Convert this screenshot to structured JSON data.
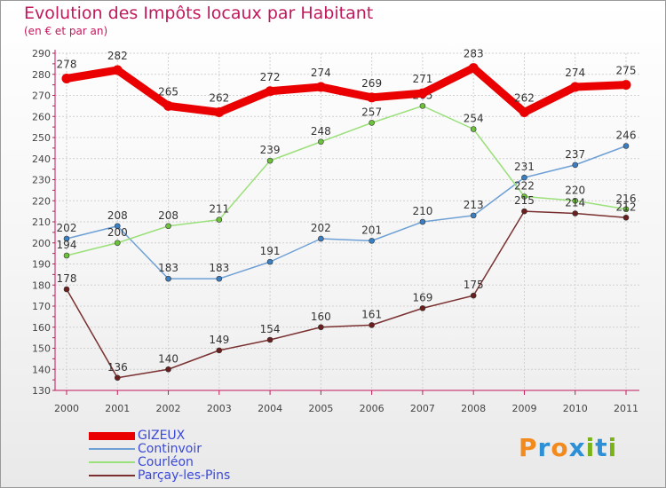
{
  "header": {
    "title": "Evolution des Impôts locaux par Habitant",
    "subtitle": "(en € et par an)"
  },
  "logo": {
    "text": "Proxiti",
    "letters": [
      "P",
      "r",
      "o",
      "x",
      "i",
      "t",
      "i"
    ],
    "letter_colors": [
      "#f28a1e",
      "#2d8fd6",
      "#f28a1e",
      "#2d8fd6",
      "#7ab317",
      "#2d8fd6",
      "#7ab317"
    ]
  },
  "colors": {
    "title": "#c2185b",
    "axis": "#c2185b",
    "grid": "#d0d0d0",
    "legend_text": "#3a48d8"
  },
  "chart_data": {
    "type": "line",
    "title": "Evolution des Impôts locaux par Habitant",
    "subtitle": "(en € et par an)",
    "xlabel": "",
    "ylabel": "",
    "categories": [
      "2000",
      "2001",
      "2002",
      "2003",
      "2004",
      "2005",
      "2006",
      "2007",
      "2008",
      "2009",
      "2010",
      "2011"
    ],
    "ylim": [
      130,
      290
    ],
    "yticks": [
      130,
      140,
      150,
      160,
      170,
      180,
      190,
      200,
      210,
      220,
      230,
      240,
      250,
      260,
      270,
      280,
      290
    ],
    "grid": true,
    "legend_position": "bottom-left",
    "series": [
      {
        "name": "GIZEUX",
        "color": "#ea0000",
        "marker": "#ea0000",
        "thick": true,
        "values": [
          278,
          282,
          265,
          262,
          272,
          274,
          269,
          271,
          283,
          262,
          274,
          275
        ]
      },
      {
        "name": "Continvoir",
        "color": "#6ea0d6",
        "marker": "#3a7fc2",
        "thick": false,
        "values": [
          202,
          208,
          183,
          183,
          191,
          202,
          201,
          210,
          213,
          231,
          237,
          246
        ]
      },
      {
        "name": "Courléon",
        "color": "#9be07a",
        "marker": "#6cc23a",
        "thick": false,
        "values": [
          194,
          200,
          208,
          211,
          239,
          248,
          257,
          265,
          254,
          222,
          220,
          216
        ]
      },
      {
        "name": "Parçay-les-Pins",
        "color": "#7a3030",
        "marker": "#6b1e1e",
        "thick": false,
        "values": [
          178,
          136,
          140,
          149,
          154,
          160,
          161,
          169,
          175,
          215,
          214,
          212
        ]
      }
    ]
  }
}
